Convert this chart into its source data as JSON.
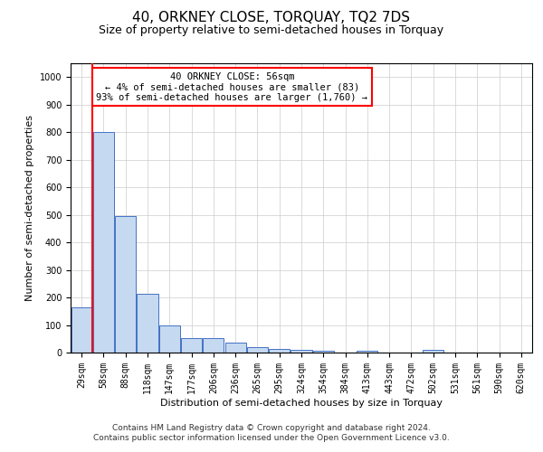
{
  "title": "40, ORKNEY CLOSE, TORQUAY, TQ2 7DS",
  "subtitle": "Size of property relative to semi-detached houses in Torquay",
  "xlabel": "Distribution of semi-detached houses by size in Torquay",
  "ylabel": "Number of semi-detached properties",
  "footnote1": "Contains HM Land Registry data © Crown copyright and database right 2024.",
  "footnote2": "Contains public sector information licensed under the Open Government Licence v3.0.",
  "annotation_line1": "40 ORKNEY CLOSE: 56sqm",
  "annotation_line2": "← 4% of semi-detached houses are smaller (83)",
  "annotation_line3": "93% of semi-detached houses are larger (1,760) →",
  "categories": [
    "29sqm",
    "58sqm",
    "88sqm",
    "118sqm",
    "147sqm",
    "177sqm",
    "206sqm",
    "236sqm",
    "265sqm",
    "295sqm",
    "324sqm",
    "354sqm",
    "384sqm",
    "413sqm",
    "443sqm",
    "472sqm",
    "502sqm",
    "531sqm",
    "561sqm",
    "590sqm",
    "620sqm"
  ],
  "values": [
    163,
    800,
    497,
    213,
    100,
    52,
    52,
    35,
    20,
    13,
    10,
    7,
    0,
    8,
    0,
    0,
    10,
    0,
    0,
    0,
    0
  ],
  "bar_color": "#c5d9f1",
  "bar_edge_color": "#4472c4",
  "redline_index": 1,
  "ylim": [
    0,
    1050
  ],
  "yticks": [
    0,
    100,
    200,
    300,
    400,
    500,
    600,
    700,
    800,
    900,
    1000
  ],
  "annotation_box_color": "white",
  "annotation_box_edge": "red",
  "redline_color": "red",
  "grid_color": "#cccccc",
  "title_fontsize": 11,
  "subtitle_fontsize": 9,
  "axis_label_fontsize": 8,
  "tick_fontsize": 7,
  "annotation_fontsize": 7.5,
  "footnote_fontsize": 6.5
}
